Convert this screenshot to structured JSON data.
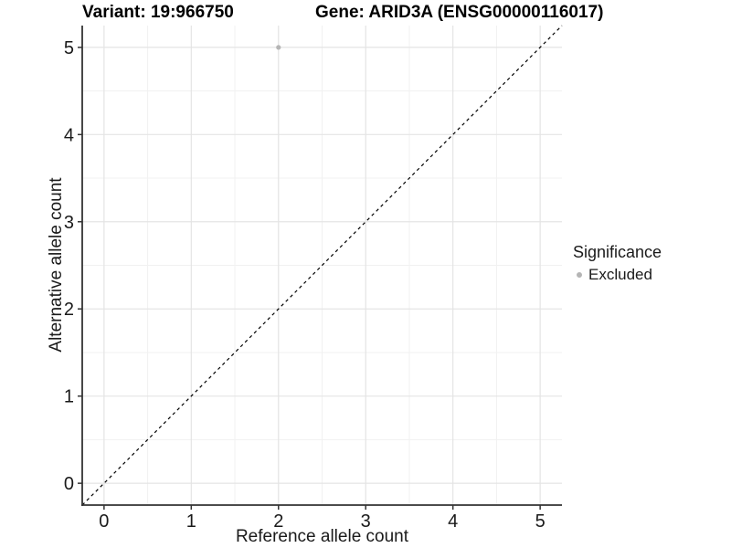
{
  "header": {
    "title_left": "Variant: 19:966750",
    "title_right": "Gene: ARID3A (ENSG00000116017)"
  },
  "legend": {
    "title": "Significance",
    "position": "right",
    "items": [
      {
        "label": "Excluded",
        "color": "#b5b5b5"
      }
    ]
  },
  "chart_data": {
    "type": "scatter",
    "title": "Variant: 19:966750   Gene: ARID3A (ENSG00000116017)",
    "xlabel": "Reference allele count",
    "ylabel": "Alternative allele count",
    "xlim": [
      -0.25,
      5.25
    ],
    "ylim": [
      -0.25,
      5.25
    ],
    "xticks": [
      0,
      1,
      2,
      3,
      4,
      5
    ],
    "yticks": [
      0,
      1,
      2,
      3,
      4,
      5
    ],
    "xminor": [
      0.5,
      1.5,
      2.5,
      3.5,
      4.5
    ],
    "yminor": [
      0.5,
      1.5,
      2.5,
      3.5,
      4.5
    ],
    "grid": "major+minor",
    "legend_position": "right",
    "series": [
      {
        "name": "Excluded",
        "color": "#b5b5b5",
        "points": [
          {
            "x": 2,
            "y": 5
          }
        ]
      }
    ],
    "abline": {
      "slope": 1,
      "intercept": 0,
      "style": "dashed",
      "color": "#000000"
    },
    "colors": {
      "background": "#ffffff",
      "grid_major": "#e4e4e4",
      "grid_minor": "#f1f1f1",
      "axis_line": "#333333",
      "tick_text": "#1a1a1a"
    }
  }
}
